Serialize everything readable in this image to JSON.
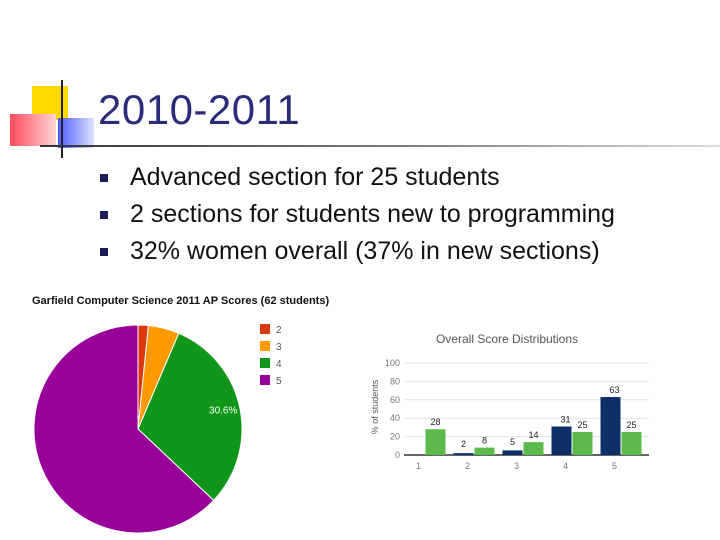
{
  "slide": {
    "title": "2010-2011",
    "bullets": [
      "Advanced section for 25 students",
      "2 sections for students new to programming",
      "32% women overall (37% in new sections)"
    ]
  },
  "chart_data": [
    {
      "type": "pie",
      "title": "Garfield Computer Science 2011 AP Scores (62 students)",
      "labels": [
        "2",
        "3",
        "4",
        "5"
      ],
      "values": [
        1.6,
        4.8,
        30.6,
        62.9
      ],
      "value_labels": [
        "",
        "",
        "30.6%",
        "62.9%"
      ],
      "colors": [
        "#dc3912",
        "#ff9900",
        "#109618",
        "#990099"
      ],
      "legend": "right"
    },
    {
      "type": "bar",
      "title": "Overall Score Distributions",
      "ylabel": "% of students",
      "categories": [
        "1",
        "2",
        "3",
        "4",
        "5"
      ],
      "ylim": [
        0,
        100
      ],
      "yticks": [
        0,
        20,
        40,
        60,
        80,
        100
      ],
      "series": [
        {
          "values": [
            0,
            2,
            5,
            31,
            63
          ],
          "labels": [
            "",
            "2",
            "5",
            "31",
            "63"
          ],
          "color": "#0b2f66"
        },
        {
          "values": [
            28,
            8,
            14,
            25,
            25
          ],
          "labels": [
            "28",
            "8",
            "14",
            "25",
            "25"
          ],
          "color": "#5cba4a"
        }
      ]
    }
  ]
}
